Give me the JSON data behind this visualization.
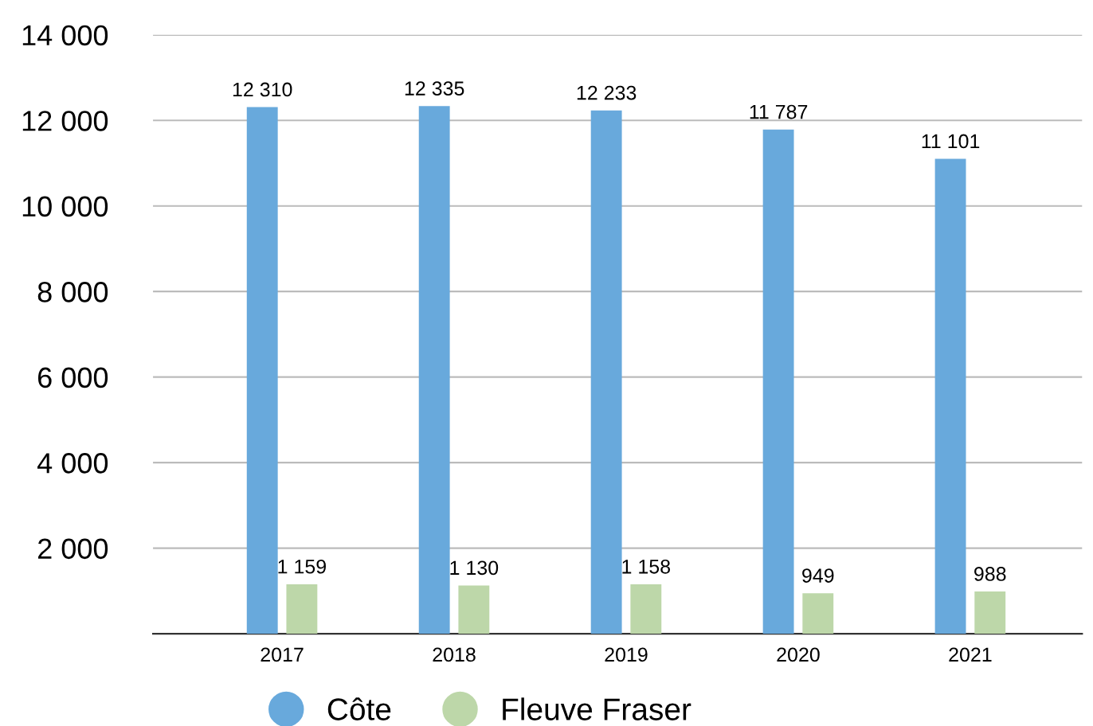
{
  "chart_data": {
    "type": "bar",
    "categories": [
      "2017",
      "2018",
      "2019",
      "2020",
      "2021"
    ],
    "series": [
      {
        "name": "Côte",
        "color": "#68a9dc",
        "values": [
          12310,
          12335,
          12233,
          11787,
          11101
        ],
        "value_labels": [
          "12 310",
          "12 335",
          "12 233",
          "11 787",
          "11 101"
        ]
      },
      {
        "name": "Fleuve Fraser",
        "color": "#bdd7a9",
        "values": [
          1159,
          1130,
          1158,
          949,
          988
        ],
        "value_labels": [
          "1 159",
          "1 130",
          "1 158",
          "949",
          "988"
        ]
      }
    ],
    "ylim": [
      0,
      14000
    ],
    "yticks": [
      {
        "value": 0,
        "label": null
      },
      {
        "value": 2000,
        "label": "2 000"
      },
      {
        "value": 4000,
        "label": "4 000"
      },
      {
        "value": 6000,
        "label": "6 000"
      },
      {
        "value": 8000,
        "label": "8 000"
      },
      {
        "value": 10000,
        "label": "10 000"
      },
      {
        "value": 12000,
        "label": "12 000"
      },
      {
        "value": 14000,
        "label": "14 000"
      }
    ],
    "grid": "y",
    "legend": "bottom left"
  }
}
